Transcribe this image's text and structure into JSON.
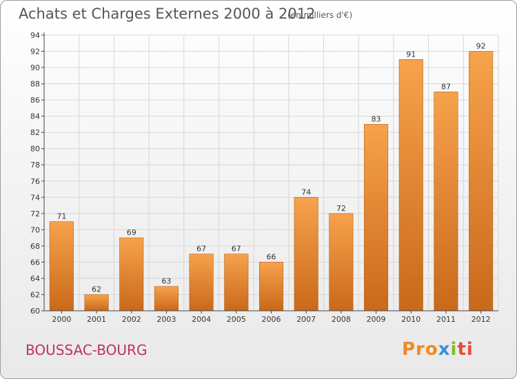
{
  "header": {
    "title": "Achats et Charges Externes 2000 à 2012",
    "subtitle": "(en milliers d'€)"
  },
  "footer": {
    "commune": "BOUSSAC-BOURG",
    "logo_text": "Proxiti",
    "logo_parts": [
      "Pro",
      "x",
      "i",
      "ti"
    ]
  },
  "colors": {
    "bar_light": "#f7a24c",
    "bar_dark": "#c9691a",
    "axis": "#444444",
    "grid": "#d6d6d6"
  },
  "chart_data": {
    "type": "bar",
    "title": "Achats et Charges Externes 2000 à 2012",
    "subtitle": "(en milliers d'€)",
    "xlabel": "",
    "ylabel": "",
    "categories": [
      "2000",
      "2001",
      "2002",
      "2003",
      "2004",
      "2005",
      "2006",
      "2007",
      "2008",
      "2009",
      "2010",
      "2011",
      "2012"
    ],
    "values": [
      71,
      62,
      69,
      63,
      67,
      67,
      66,
      74,
      72,
      83,
      91,
      87,
      92
    ],
    "ylim": [
      60,
      94
    ],
    "yticks": [
      60,
      62,
      64,
      66,
      68,
      70,
      72,
      74,
      76,
      78,
      80,
      82,
      84,
      86,
      88,
      90,
      92,
      94
    ],
    "grid": true,
    "data_labels": true
  }
}
